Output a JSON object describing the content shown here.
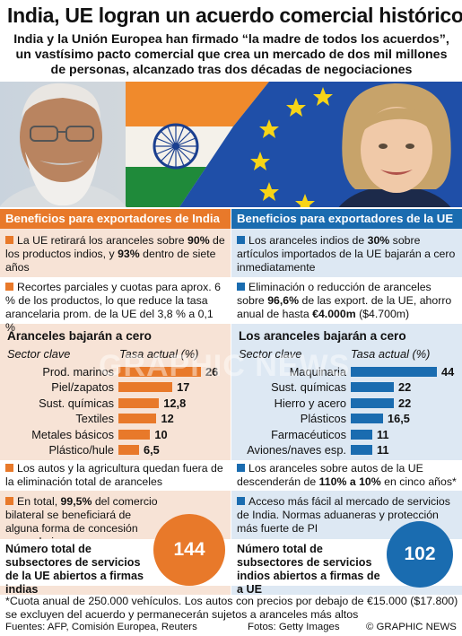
{
  "title": "India, UE logran un acuerdo comercial histórico",
  "subtitle": "India y la Unión Europea han firmado “la madre de todos los acuerdos”, un vastísimo pacto comercial que crea un mercado de dos mil millones de personas, alcanzado tras dos décadas de negociaciones",
  "watermark": "GRAPHIC NEWS",
  "colors": {
    "india": "#e8792a",
    "eu": "#1a6cb0",
    "india_bg": "#f7e3d6",
    "eu_bg": "#dde8f3"
  },
  "left": {
    "header": "Beneficios para exportadores de India",
    "bullet1": {
      "a": "La UE retirará los aranceles sobre ",
      "b": "90%",
      "c": " de los productos indios, y ",
      "d": "93%",
      "e": " dentro de siete años"
    },
    "bullet2": "Recortes parciales y cuotas para aprox. 6 % de los productos, lo que reduce la tasa arancelaria prom. de la UE del 3,8 % a 0,1 %",
    "section_title": "Aranceles bajarán a cero",
    "axis_head_left": "Sector clave",
    "axis_head_right": "Tasa actual (%)",
    "bullet3": "Los autos y la agricultura quedan fuera de la eliminación total de aranceles",
    "bullet4": {
      "a": "En total, ",
      "b": "99,5%",
      "c": " del comercio bilateral se beneficiará de alguna forma de concesión arancelaria"
    },
    "total_label": "Número total de subsectores de servicios de la UE abiertos a firmas indias",
    "total_value": "144"
  },
  "right": {
    "header": "Beneficios para exportadores de la UE",
    "bullet1": {
      "a": "Los aranceles indios de ",
      "b": "30%",
      "c": " sobre artículos importados de la UE bajarán a cero inmediatamente"
    },
    "bullet2": {
      "a": "Eliminación o reducción de aranceles sobre ",
      "b": "96,6%",
      "c": " de las export. de la UE, ahorro anual de hasta ",
      "d": "€4.000m",
      "e": " ($4.700m)"
    },
    "section_title": "Los aranceles bajarán a cero",
    "axis_head_left": "Sector clave",
    "axis_head_right": "Tasa actual (%)",
    "bullet3": {
      "a": "Los aranceles sobre autos de la UE descenderán de ",
      "b": "110% a 10%",
      "c": " en cinco años*"
    },
    "bullet4": "Acceso más fácil al mercado de servicios de India. Normas aduaneras y protección más fuerte de PI",
    "total_label": "Número total de subsectores de servicios indios abiertos a firmas de a UE",
    "total_value": "102"
  },
  "chart_data": [
    {
      "type": "bar",
      "title": "Aranceles bajarán a cero",
      "xlabel": "Sector clave",
      "ylabel": "Tasa actual (%)",
      "categories": [
        "Prod. marinos",
        "Piel/zapatos",
        "Sust. químicas",
        "Textiles",
        "Metales básicos",
        "Plástico/hule"
      ],
      "values": [
        26,
        17,
        12.8,
        12,
        10,
        6.5
      ],
      "value_labels": [
        "26",
        "17",
        "12,8",
        "12",
        "10",
        "6,5"
      ],
      "xlim": [
        0,
        26
      ],
      "color": "#e8792a"
    },
    {
      "type": "bar",
      "title": "Los aranceles bajarán a cero",
      "xlabel": "Sector clave",
      "ylabel": "Tasa actual (%)",
      "categories": [
        "Maquinaria",
        "Sust. químicas",
        "Hierro y acero",
        "Plásticos",
        "Farmacéuticos",
        "Aviones/naves esp."
      ],
      "values": [
        44,
        22,
        22,
        16.5,
        11,
        11
      ],
      "value_labels": [
        "44",
        "22",
        "22",
        "16,5",
        "11",
        "11"
      ],
      "xlim": [
        0,
        44
      ],
      "color": "#1a6cb0"
    }
  ],
  "footnote": "*Cuota anual de 250.000 vehículos. Los autos con precios por debajo de €15.000 ($17.800) se excluyen del acuerdo y permanecerán sujetos a aranceles más altos",
  "sources": "Fuentes: AFP, Comisión Europea, Reuters",
  "photos": "Fotos: Getty Images",
  "copyright": "© GRAPHIC NEWS"
}
